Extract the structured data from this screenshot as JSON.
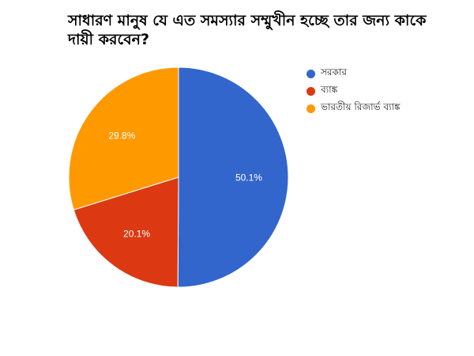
{
  "chart_data": {
    "type": "pie",
    "title": "সাধারণ মানুষ যে এত সমস্যার সম্মুখীন হচ্ছে তার জন্য কাকে দায়ী করবেন?",
    "slices": [
      {
        "label": "সরকার",
        "value": 50.1,
        "display": "50.1%",
        "color": "#3366cc"
      },
      {
        "label": "ব্যাঙ্ক",
        "value": 20.1,
        "display": "20.1%",
        "color": "#dc3912"
      },
      {
        "label": "ভারতীয় রিজার্ভ ব্যাঙ্ক",
        "value": 29.8,
        "display": "29.8%",
        "color": "#ff9900"
      }
    ],
    "legend_position": "right",
    "start_angle": "top",
    "direction": "clockwise"
  }
}
